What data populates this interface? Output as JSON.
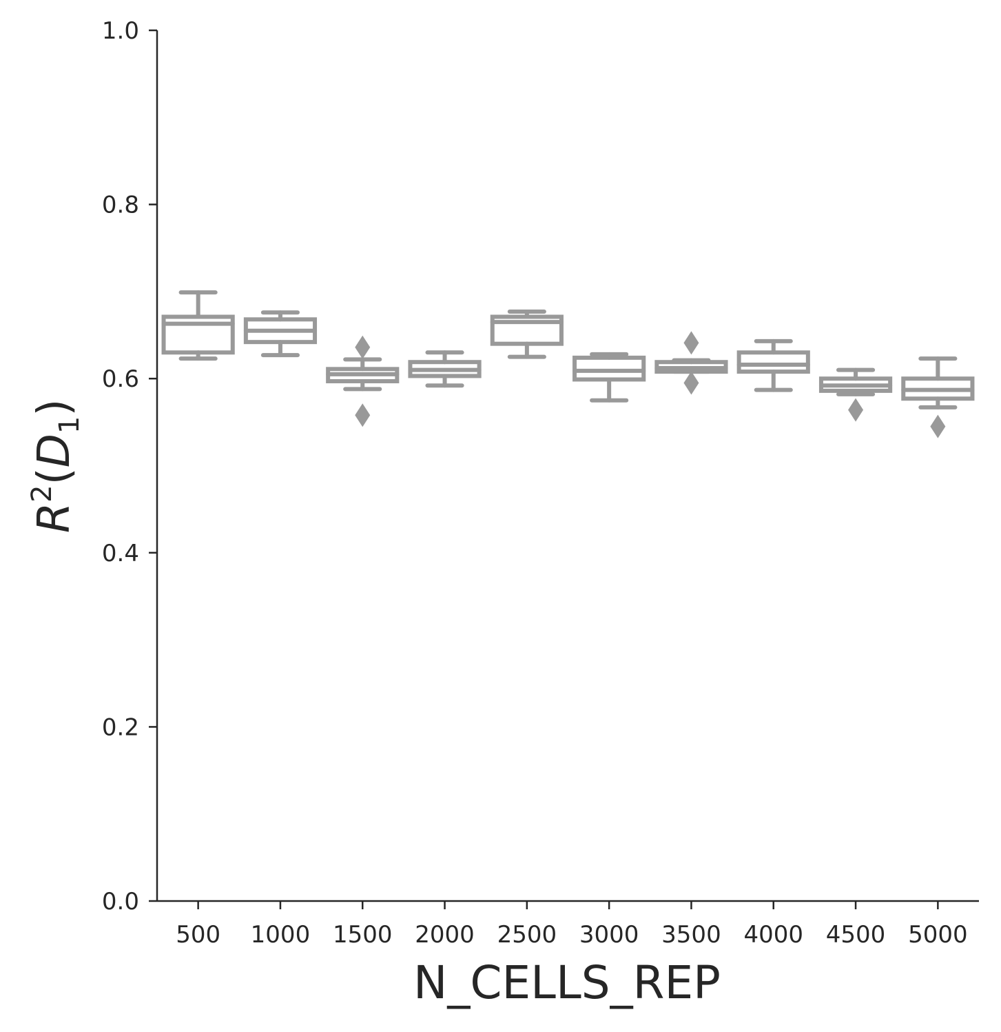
{
  "chart_data": {
    "type": "box",
    "xlabel": "N_CELLS_REP",
    "ylabel": {
      "main": "R",
      "sup": "2",
      "open": "(",
      "inner": "D",
      "sub": "1",
      "close": ")"
    },
    "ylim": [
      0,
      1
    ],
    "yticks": [
      "0.0",
      "0.2",
      "0.4",
      "0.6",
      "0.8",
      "1.0"
    ],
    "categories": [
      "500",
      "1000",
      "1500",
      "2000",
      "2500",
      "3000",
      "3500",
      "4000",
      "4500",
      "5000"
    ],
    "color": "#999999",
    "grid": false,
    "boxes": [
      {
        "category": "500",
        "whislo": 0.623,
        "q1": 0.63,
        "med": 0.663,
        "q3": 0.671,
        "whishi": 0.699,
        "fliers": []
      },
      {
        "category": "1000",
        "whislo": 0.627,
        "q1": 0.642,
        "med": 0.655,
        "q3": 0.668,
        "whishi": 0.676,
        "fliers": []
      },
      {
        "category": "1500",
        "whislo": 0.588,
        "q1": 0.597,
        "med": 0.605,
        "q3": 0.611,
        "whishi": 0.622,
        "fliers": [
          0.558,
          0.636
        ]
      },
      {
        "category": "2000",
        "whislo": 0.592,
        "q1": 0.603,
        "med": 0.61,
        "q3": 0.619,
        "whishi": 0.63,
        "fliers": []
      },
      {
        "category": "2500",
        "whislo": 0.625,
        "q1": 0.64,
        "med": 0.665,
        "q3": 0.671,
        "whishi": 0.677,
        "fliers": []
      },
      {
        "category": "3000",
        "whislo": 0.575,
        "q1": 0.599,
        "med": 0.609,
        "q3": 0.624,
        "whishi": 0.628,
        "fliers": []
      },
      {
        "category": "3500",
        "whislo": 0.608,
        "q1": 0.608,
        "med": 0.612,
        "q3": 0.619,
        "whishi": 0.621,
        "fliers": [
          0.595,
          0.641
        ]
      },
      {
        "category": "4000",
        "whislo": 0.587,
        "q1": 0.608,
        "med": 0.616,
        "q3": 0.63,
        "whishi": 0.643,
        "fliers": []
      },
      {
        "category": "4500",
        "whislo": 0.582,
        "q1": 0.586,
        "med": 0.592,
        "q3": 0.6,
        "whishi": 0.61,
        "fliers": [
          0.564
        ]
      },
      {
        "category": "5000",
        "whislo": 0.567,
        "q1": 0.577,
        "med": 0.587,
        "q3": 0.6,
        "whishi": 0.623,
        "fliers": [
          0.545
        ]
      }
    ]
  }
}
